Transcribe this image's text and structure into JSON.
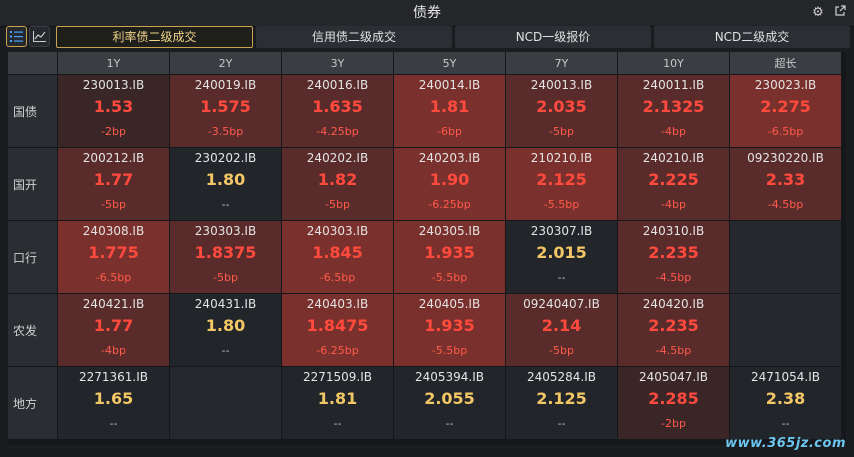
{
  "window": {
    "title": "债券"
  },
  "tabs": [
    {
      "label": "利率债二级成交",
      "active": true
    },
    {
      "label": "信用债二级成交",
      "active": false
    },
    {
      "label": "NCD一级报价",
      "active": false
    },
    {
      "label": "NCD二级成交",
      "active": false
    }
  ],
  "columns": [
    "1Y",
    "2Y",
    "3Y",
    "5Y",
    "7Y",
    "10Y",
    "超长"
  ],
  "rows": [
    {
      "label": "国债",
      "cells": [
        {
          "code": "230013.IB",
          "rate": "1.53",
          "change": "-2bp",
          "heat": 1
        },
        {
          "code": "240019.IB",
          "rate": "1.575",
          "change": "-3.5bp",
          "heat": 2
        },
        {
          "code": "240016.IB",
          "rate": "1.635",
          "change": "-4.25bp",
          "heat": 2
        },
        {
          "code": "240014.IB",
          "rate": "1.81",
          "change": "-6bp",
          "heat": 3
        },
        {
          "code": "240013.IB",
          "rate": "2.035",
          "change": "-5bp",
          "heat": 2
        },
        {
          "code": "240011.IB",
          "rate": "2.1325",
          "change": "-4bp",
          "heat": 2
        },
        {
          "code": "230023.IB",
          "rate": "2.275",
          "change": "-6.5bp",
          "heat": 3
        }
      ]
    },
    {
      "label": "国开",
      "cells": [
        {
          "code": "200212.IB",
          "rate": "1.77",
          "change": "-5bp",
          "heat": 2
        },
        {
          "code": "230202.IB",
          "rate": "1.80",
          "change": "--",
          "heat": 0
        },
        {
          "code": "240202.IB",
          "rate": "1.82",
          "change": "-5bp",
          "heat": 2
        },
        {
          "code": "240203.IB",
          "rate": "1.90",
          "change": "-6.25bp",
          "heat": 3
        },
        {
          "code": "210210.IB",
          "rate": "2.125",
          "change": "-5.5bp",
          "heat": 3
        },
        {
          "code": "240210.IB",
          "rate": "2.225",
          "change": "-4bp",
          "heat": 2
        },
        {
          "code": "09230220.IB",
          "rate": "2.33",
          "change": "-4.5bp",
          "heat": 2
        }
      ]
    },
    {
      "label": "口行",
      "cells": [
        {
          "code": "240308.IB",
          "rate": "1.775",
          "change": "-6.5bp",
          "heat": 3
        },
        {
          "code": "230303.IB",
          "rate": "1.8375",
          "change": "-5bp",
          "heat": 2
        },
        {
          "code": "240303.IB",
          "rate": "1.845",
          "change": "-6.5bp",
          "heat": 3
        },
        {
          "code": "240305.IB",
          "rate": "1.935",
          "change": "-5.5bp",
          "heat": 3
        },
        {
          "code": "230307.IB",
          "rate": "2.015",
          "change": "--",
          "heat": 0
        },
        {
          "code": "240310.IB",
          "rate": "2.235",
          "change": "-4.5bp",
          "heat": 2
        },
        {
          "code": "",
          "rate": "",
          "change": "",
          "heat": -1
        }
      ]
    },
    {
      "label": "农发",
      "cells": [
        {
          "code": "240421.IB",
          "rate": "1.77",
          "change": "-4bp",
          "heat": 2
        },
        {
          "code": "240431.IB",
          "rate": "1.80",
          "change": "--",
          "heat": 0
        },
        {
          "code": "240403.IB",
          "rate": "1.8475",
          "change": "-6.25bp",
          "heat": 3
        },
        {
          "code": "240405.IB",
          "rate": "1.935",
          "change": "-5.5bp",
          "heat": 3
        },
        {
          "code": "09240407.IB",
          "rate": "2.14",
          "change": "-5bp",
          "heat": 2
        },
        {
          "code": "240420.IB",
          "rate": "2.235",
          "change": "-4.5bp",
          "heat": 2
        },
        {
          "code": "",
          "rate": "",
          "change": "",
          "heat": -1
        }
      ]
    },
    {
      "label": "地方",
      "cells": [
        {
          "code": "2271361.IB",
          "rate": "1.65",
          "change": "--",
          "heat": 0
        },
        {
          "code": "",
          "rate": "",
          "change": "",
          "heat": -1
        },
        {
          "code": "2271509.IB",
          "rate": "1.81",
          "change": "--",
          "heat": 0
        },
        {
          "code": "2405394.IB",
          "rate": "2.055",
          "change": "--",
          "heat": 0
        },
        {
          "code": "2405284.IB",
          "rate": "2.125",
          "change": "--",
          "heat": 0
        },
        {
          "code": "2405047.IB",
          "rate": "2.285",
          "change": "-2bp",
          "heat": 1
        },
        {
          "code": "2471054.IB",
          "rate": "2.38",
          "change": "--",
          "heat": 0
        }
      ]
    }
  ],
  "colors": {
    "heat0": "#222529",
    "heat1": "#3a2626",
    "heat2": "#5a2b2b",
    "heat3": "#7a302c",
    "empty": "#25282c",
    "down_rate": "#ff4a3d",
    "flat_rate": "#f3c766",
    "down_change": "#ff5a4a",
    "flat_change": "#bdbdbd",
    "accent": "#c9a34e"
  },
  "icons": {
    "settings": "gear-icon",
    "popout": "popout-icon",
    "table_view": "list-icon",
    "chart_view": "line-chart-icon"
  },
  "watermark": "www.365jz.com"
}
